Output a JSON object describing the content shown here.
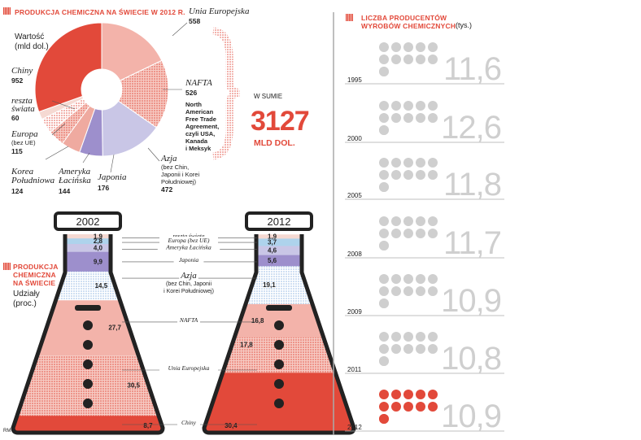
{
  "title": "PRODUKCJA CHEMICZNA NA ŚWIECIE W 2012 R.",
  "pie": {
    "ylabel_line1": "Wartość",
    "ylabel_line2": "(mld dol.)",
    "sum_label": "W SUMIE",
    "sum_value": "3127",
    "sum_unit": "MLD DOL."
  },
  "flask_section": {
    "title_line1": "PRODUKCJA",
    "title_line2": "CHEMICZNA",
    "title_line3": "NA ŚWIECIE",
    "sub_line1": "Udziały",
    "sub_line2": "(proc.)",
    "year_a": "2002",
    "year_b": "2012"
  },
  "right": {
    "title_line1": "LICZBA PRODUCENTÓW",
    "title_line2": "WYROBÓW CHEMICZNYCH",
    "unit": "(tys.)"
  },
  "credit": "RM",
  "colors": {
    "accent": "#e2493a",
    "chiny": "#e2493a",
    "unia": "#f3b3aa",
    "nafta": "#f3b3aa",
    "azja": "#c9c6e6",
    "japonia": "#9d8fcc",
    "ameryka": "#efaaa0",
    "europa": "#aed3ec",
    "reszta": "#f5d9d2",
    "grey": "#cfcfcf"
  },
  "chart_data": [
    {
      "type": "pie",
      "title": "PRODUKCJA CHEMICZNA NA ŚWIECIE W 2012 R.",
      "unit": "mld dol.",
      "total": 3127,
      "slices": [
        {
          "name": "Unia Europejska",
          "value": 558,
          "color": "#f3b3aa",
          "pattern": "solid"
        },
        {
          "name": "NAFTA",
          "value": 526,
          "note": "North American Free Trade Agreement, czyli USA, Kanada i Meksyk",
          "color": "#f3b3aa",
          "pattern": "dots"
        },
        {
          "name": "Azja",
          "value": 472,
          "note": "(bez Chin, Japonii i Korei Południowej)",
          "color": "#c9c6e6",
          "pattern": "solid"
        },
        {
          "name": "Japonia",
          "value": 176,
          "color": "#9d8fcc",
          "pattern": "solid"
        },
        {
          "name": "Ameryka Łacińska",
          "value": 144,
          "color": "#efaaa0",
          "pattern": "solid"
        },
        {
          "name": "Korea Południowa",
          "value": 124,
          "color": "#f3b3aa",
          "pattern": "dots"
        },
        {
          "name": "Europa",
          "value": 115,
          "note": "(bez UE)",
          "color": "#ffffff",
          "pattern": "dots"
        },
        {
          "name": "reszta świata",
          "value": 60,
          "color": "#f5d9d2",
          "pattern": "solid"
        },
        {
          "name": "Chiny",
          "value": 952,
          "color": "#e2493a",
          "pattern": "solid"
        }
      ]
    },
    {
      "type": "stacked-bar",
      "title": "PRODUKCJA CHEMICZNA NA ŚWIECIE",
      "unit": "proc.",
      "categories": [
        "2002",
        "2012"
      ],
      "series": [
        {
          "name": "Chiny",
          "values": [
            8.7,
            30.4
          ]
        },
        {
          "name": "Unia Europejska",
          "values": [
            30.5,
            17.8
          ]
        },
        {
          "name": "NAFTA",
          "values": [
            27.7,
            16.8
          ]
        },
        {
          "name": "Azja",
          "values": [
            14.5,
            19.1
          ]
        },
        {
          "name": "Japonia",
          "values": [
            9.9,
            5.6
          ]
        },
        {
          "name": "Ameryka Łacińska",
          "values": [
            4.0,
            4.6
          ]
        },
        {
          "name": "Europa",
          "values": [
            2.8,
            3.7
          ]
        },
        {
          "name": "reszta świata",
          "values": [
            1.9,
            1.9
          ]
        }
      ]
    },
    {
      "type": "pictogram",
      "title": "LICZBA PRODUCENTÓW WYROBÓW CHEMICZNYCH",
      "unit": "tys.",
      "x": [
        "1995",
        "2000",
        "2005",
        "2008",
        "2009",
        "2011",
        "2012"
      ],
      "values": [
        "11,6",
        "12,6",
        "11,8",
        "11,7",
        "10,9",
        "10,8",
        "10,9"
      ],
      "highlight": "2012"
    }
  ]
}
